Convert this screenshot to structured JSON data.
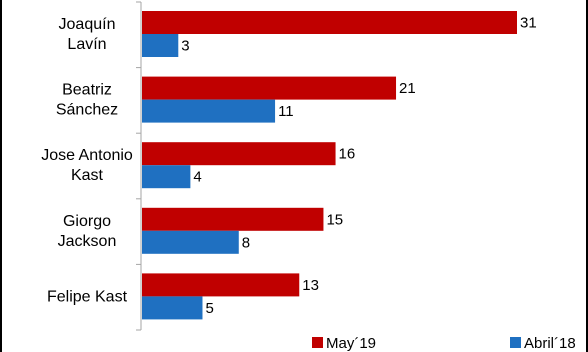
{
  "chart_data": {
    "type": "bar",
    "orientation": "horizontal",
    "categories": [
      [
        "Joaquín",
        "Lavín"
      ],
      [
        "Beatriz",
        "Sánchez"
      ],
      [
        "Jose Antonio",
        "Kast"
      ],
      [
        "Giorgo",
        "Jackson"
      ],
      [
        "Felipe Kast"
      ]
    ],
    "series": [
      {
        "name": "May´19",
        "values": [
          31,
          21,
          16,
          15,
          13
        ],
        "color": "#c00000"
      },
      {
        "name": "Abril´18",
        "values": [
          3,
          11,
          4,
          8,
          5
        ],
        "color": "#1f70c1"
      }
    ],
    "xlim": [
      0,
      35
    ],
    "grid": false,
    "legend_position": "bottom"
  }
}
